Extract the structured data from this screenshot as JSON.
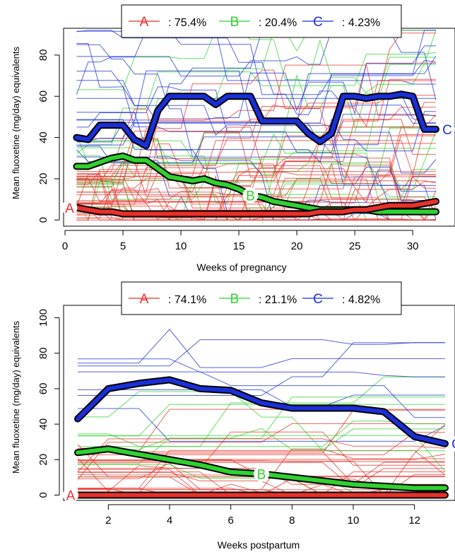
{
  "chart_data": [
    {
      "type": "line",
      "xlabel": "Weeks of pregnancy",
      "ylabel": "Mean  fluoxetine (mg/day) equivalents",
      "xlim": [
        0,
        32
      ],
      "ylim": [
        -3,
        93
      ],
      "xticks": [
        "0",
        "5",
        "10",
        "15",
        "20",
        "25",
        "30"
      ],
      "yticks": [
        "0",
        "20",
        "40",
        "60",
        "80"
      ],
      "legend_position": "top",
      "series": [
        {
          "name": "A",
          "label": "A",
          "legend_text": ": 75.4%",
          "color": "#e8302a",
          "x": [
            1,
            2,
            3,
            4,
            5,
            6,
            7,
            8,
            9,
            10,
            11,
            12,
            13,
            14,
            15,
            16,
            17,
            18,
            19,
            20,
            21,
            22,
            23,
            24,
            25,
            26,
            27,
            28,
            29,
            30,
            31,
            32
          ],
          "values": [
            6,
            5,
            4,
            4,
            3,
            3,
            3,
            3,
            3,
            3,
            3,
            3,
            3,
            3,
            3,
            3,
            3,
            3,
            3,
            3,
            3,
            4,
            4,
            4,
            5,
            5,
            6,
            7,
            7,
            7,
            8,
            9
          ]
        },
        {
          "name": "B",
          "label": "B",
          "legend_text": ": 20.4%",
          "color": "#2fd12f",
          "x": [
            1,
            2,
            3,
            4,
            5,
            6,
            7,
            8,
            9,
            10,
            11,
            12,
            13,
            14,
            15,
            16,
            17,
            18,
            19,
            20,
            21,
            22,
            23,
            24,
            25,
            26,
            27,
            28,
            29,
            30,
            31,
            32
          ],
          "values": [
            26,
            26,
            28,
            30,
            31,
            29,
            29,
            25,
            21,
            20,
            19,
            20,
            18,
            17,
            15,
            12,
            11,
            9,
            8,
            7,
            6,
            5,
            5,
            5,
            5,
            5,
            4,
            4,
            4,
            4,
            4,
            4
          ]
        },
        {
          "name": "C",
          "label": "C",
          "legend_text": ": 4.23%",
          "color": "#1a2fd8",
          "x": [
            1,
            2,
            3,
            4,
            5,
            6,
            7,
            8,
            9,
            10,
            11,
            12,
            13,
            14,
            15,
            16,
            17,
            18,
            19,
            20,
            21,
            22,
            23,
            24,
            25,
            26,
            27,
            28,
            29,
            30,
            31,
            32
          ],
          "values": [
            40,
            39,
            46,
            46,
            46,
            39,
            36,
            53,
            60,
            60,
            60,
            60,
            56,
            60,
            60,
            60,
            48,
            48,
            48,
            48,
            42,
            38,
            42,
            60,
            60,
            59,
            60,
            60,
            61,
            60,
            44,
            44
          ]
        }
      ]
    },
    {
      "type": "line",
      "xlabel": "Weeks postpartum",
      "ylabel": "Mean fluoxetine (mg/day) equivalents",
      "xlim": [
        1,
        13
      ],
      "ylim": [
        -3,
        107
      ],
      "xticks": [
        "2",
        "4",
        "6",
        "8",
        "10",
        "12"
      ],
      "yticks": [
        "0",
        "20",
        "40",
        "60",
        "80",
        "100"
      ],
      "legend_position": "top",
      "series": [
        {
          "name": "A",
          "label": "A",
          "legend_text": ": 74.1%",
          "color": "#e8302a",
          "x": [
            1,
            2,
            3,
            4,
            5,
            6,
            7,
            8,
            9,
            10,
            11,
            12,
            13
          ],
          "values": [
            0,
            0,
            0,
            0,
            0,
            0,
            0,
            0,
            0,
            0,
            0,
            0,
            0
          ]
        },
        {
          "name": "B",
          "label": "B",
          "legend_text": ": 21.1%",
          "color": "#2fd12f",
          "x": [
            1,
            2,
            3,
            4,
            5,
            6,
            7,
            8,
            9,
            10,
            11,
            12,
            13
          ],
          "values": [
            24,
            26,
            23,
            20,
            17,
            13,
            12,
            10,
            8,
            6,
            5,
            4,
            4
          ]
        },
        {
          "name": "C",
          "label": "C",
          "legend_text": ": 4.82%",
          "color": "#1a2fd8",
          "x": [
            1,
            2,
            3,
            4,
            5,
            6,
            7,
            8,
            9,
            10,
            11,
            12,
            13
          ],
          "values": [
            43,
            60,
            63,
            65,
            60,
            59,
            52,
            49,
            49,
            49,
            47,
            33,
            29
          ]
        }
      ]
    }
  ]
}
